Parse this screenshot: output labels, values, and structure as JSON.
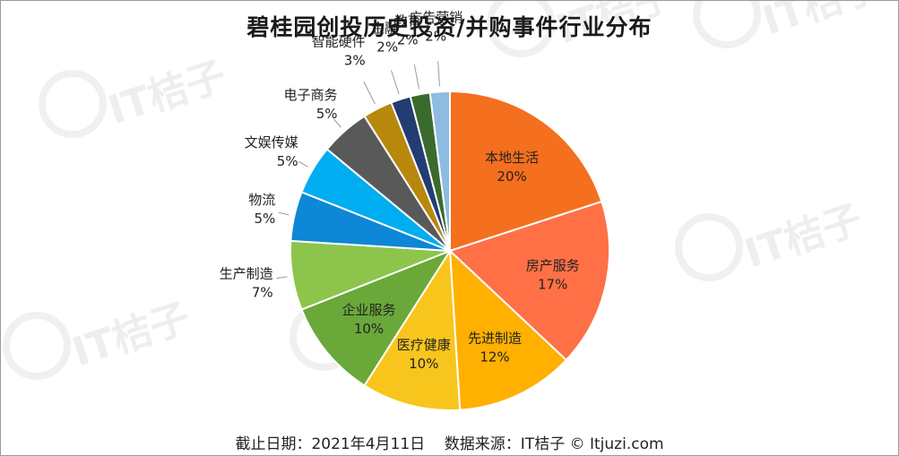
{
  "chart_data": {
    "type": "pie",
    "title": "碧桂园创投历史投资/并购事件行业分布",
    "slices": [
      {
        "label": "本地生活",
        "value": 20,
        "value_label": "20%",
        "color": "#f46f1e"
      },
      {
        "label": "房产服务",
        "value": 17,
        "value_label": "17%",
        "color": "#ff7047"
      },
      {
        "label": "先进制造",
        "value": 12,
        "value_label": "12%",
        "color": "#ffb000"
      },
      {
        "label": "医疗健康",
        "value": 10,
        "value_label": "10%",
        "color": "#f8c51d"
      },
      {
        "label": "企业服务",
        "value": 10,
        "value_label": "10%",
        "color": "#6aa83a"
      },
      {
        "label": "生产制造",
        "value": 7,
        "value_label": "7%",
        "color": "#8dc44c"
      },
      {
        "label": "物流",
        "value": 5,
        "value_label": "5%",
        "color": "#0d87d6"
      },
      {
        "label": "文娱传媒",
        "value": 5,
        "value_label": "5%",
        "color": "#00adf0"
      },
      {
        "label": "电子商务",
        "value": 5,
        "value_label": "5%",
        "color": "#595959"
      },
      {
        "label": "智能硬件",
        "value": 3,
        "value_label": "3%",
        "color": "#b7880c"
      },
      {
        "label": "金融",
        "value": 2,
        "value_label": "2%",
        "color": "#233c72"
      },
      {
        "label": "教育",
        "value": 2,
        "value_label": "2%",
        "color": "#3a6a2c"
      },
      {
        "label": "广告营销",
        "value": 2,
        "value_label": "2%",
        "color": "#8ebbe0"
      }
    ]
  },
  "footer": {
    "date_text": "截止日期：2021年4月11日",
    "source_text": "数据来源：IT桔子 © Itjuzi.com"
  },
  "watermark": "IT桔子"
}
